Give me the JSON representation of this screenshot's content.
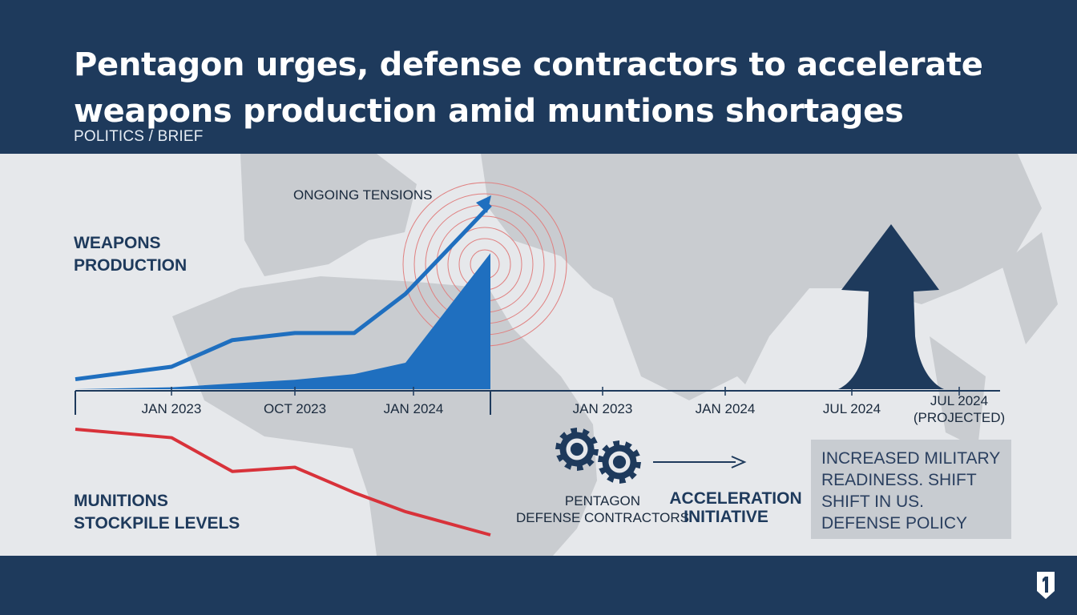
{
  "header": {
    "title": "Pentagon urges, defense contractors to accelerate weapons production amid muntions shortages",
    "subtitle": "POLITICS / BRIEF"
  },
  "labels": {
    "weapons_line1": "WEAPONS",
    "weapons_line2": "PRODUCTION",
    "munitions_line1": "MUNITIONS",
    "munitions_line2": "STOCKPILE LEVELS",
    "tensions": "ONGOING TENSIONS",
    "pentagon": "PENTAGON",
    "contractors": "DEFENSE CONTRACTORS",
    "acceleration_line1": "ACCELERATION",
    "acceleration_line2": "INITIATIVE",
    "readiness_box": "INCREASED MILITARY READINESS. SHIFT SHIFT IN US. DEFENSE POLICY"
  },
  "colors": {
    "navy": "#1e3a5c",
    "blue": "#1f6fbf",
    "red": "#d8323a",
    "map": "#c9ccd0",
    "background": "#e6e8eb"
  },
  "icons": [
    "gear-icon",
    "right-arrow-icon",
    "up-arrow-icon",
    "logo-icon"
  ],
  "chart_data": [
    {
      "type": "line",
      "categories": [
        "",
        "JAN 2023",
        "",
        "OCT 2023",
        "",
        "JAN 2024",
        ""
      ],
      "series": [
        {
          "name": "WEAPONS PRODUCTION",
          "color": "#1f6fbf",
          "values": [
            2,
            9,
            24,
            28,
            28,
            50,
            100
          ]
        },
        {
          "name": "",
          "color": "#1f6fbf",
          "values": [
            0,
            1,
            3,
            5,
            8,
            14,
            72
          ]
        },
        {
          "name": "MUNITIONS STOCKPILE LEVELS",
          "color": "#d8323a",
          "values": [
            100,
            92,
            60,
            64,
            40,
            22,
            0
          ]
        }
      ],
      "annotation": "ONGOING TENSIONS",
      "grid": false
    },
    {
      "type": "timeline",
      "categories": [
        "JAN 2023",
        "JAN 2024",
        "JUL 2024",
        "JUL 2024 (PROJECTED)"
      ],
      "tick_labels": [
        "JAN 2023",
        "JAN 2024",
        "JUL 2024",
        "JUL 2024",
        "(PROJECTED)"
      ]
    }
  ]
}
